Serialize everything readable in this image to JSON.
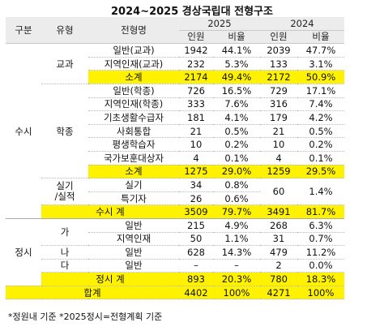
{
  "title": "2024~2025 경상국립대 전형구조",
  "header": {
    "col_gubun": "구분",
    "col_type": "유형",
    "col_name": "전형명",
    "year_2025": "2025",
    "year_2024": "2024",
    "inwon": "인원",
    "biyul": "비율"
  },
  "rows": {
    "gyogwa_label": "교과",
    "susi_label": "수시",
    "hakjong_label": "학종",
    "silgi_label": "실기",
    "silgi_label2": "/실적",
    "jeongsi_label": "정시",
    "ga": "가",
    "na": "나",
    "da": "다",
    "r1": {
      "name": "일반(교과)",
      "a": "1942",
      "b": "44.1%",
      "c": "2039",
      "d": "47.7%"
    },
    "r2": {
      "name": "지역인재(교과)",
      "a": "232",
      "b": "5.3%",
      "c": "133",
      "d": "3.1%"
    },
    "r3": {
      "name": "소계",
      "a": "2174",
      "b": "49.4%",
      "c": "2172",
      "d": "50.9%"
    },
    "r4": {
      "name": "일반(학종)",
      "a": "726",
      "b": "16.5%",
      "c": "729",
      "d": "17.1%"
    },
    "r5": {
      "name": "지역인재(학종)",
      "a": "333",
      "b": "7.6%",
      "c": "316",
      "d": "7.4%"
    },
    "r6": {
      "name": "기초생활수급자",
      "a": "181",
      "b": "4.1%",
      "c": "179",
      "d": "4.2%"
    },
    "r7": {
      "name": "사회통합",
      "a": "21",
      "b": "0.5%",
      "c": "21",
      "d": "0.5%"
    },
    "r8": {
      "name": "평생학습자",
      "a": "10",
      "b": "0.2%",
      "c": "10",
      "d": "0.2%"
    },
    "r9": {
      "name": "국가보훈대상자",
      "a": "4",
      "b": "0.1%",
      "c": "4",
      "d": "0.1%"
    },
    "r10": {
      "name": "소계",
      "a": "1275",
      "b": "29.0%",
      "c": "1259",
      "d": "29.5%"
    },
    "r11": {
      "name": "실기",
      "a": "34",
      "b": "0.8%",
      "c": "60",
      "d": "1.4%"
    },
    "r12": {
      "name": "특기자",
      "a": "26",
      "b": "0.6%"
    },
    "r13": {
      "name": "수시 계",
      "a": "3509",
      "b": "79.7%",
      "c": "3491",
      "d": "81.7%"
    },
    "r14": {
      "name": "일반",
      "a": "215",
      "b": "4.9%",
      "c": "268",
      "d": "6.3%"
    },
    "r15": {
      "name": "지역인재",
      "a": "50",
      "b": "1.1%",
      "c": "31",
      "d": "0.7%"
    },
    "r16": {
      "name": "일반",
      "a": "628",
      "b": "14.3%",
      "c": "479",
      "d": "11.2%"
    },
    "r17": {
      "name": "일반",
      "a": "–",
      "b": "–",
      "c": "2",
      "d": "0.0%"
    },
    "r18": {
      "name": "정시 계",
      "a": "893",
      "b": "20.3%",
      "c": "780",
      "d": "18.3%"
    },
    "r19": {
      "name": "합계",
      "a": "4402",
      "b": "100%",
      "c": "4271",
      "d": "100%"
    }
  },
  "footnote": "*정원내 기준  *2025정시=전형계획 기준",
  "colors": {
    "highlight": "#fff200",
    "header": "#ececec"
  }
}
